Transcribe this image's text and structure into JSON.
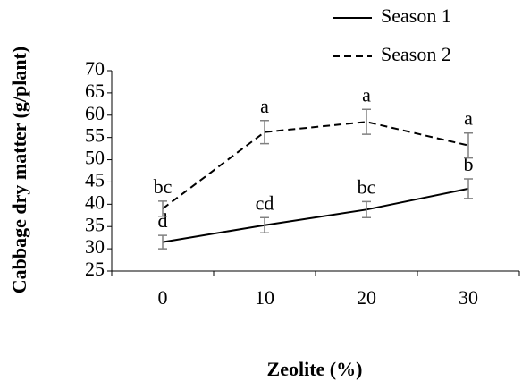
{
  "chart_data": {
    "type": "line",
    "categories": [
      "0",
      "10",
      "20",
      "30"
    ],
    "series": [
      {
        "name": "Season 1",
        "color": "#000000",
        "dash": false,
        "values": [
          31.5,
          35.3,
          38.8,
          43.5
        ],
        "errors": [
          1.5,
          1.7,
          1.8,
          2.2
        ],
        "letters": [
          "d",
          "cd",
          "bc",
          "b"
        ]
      },
      {
        "name": "Season 2",
        "color": "#000000",
        "dash": true,
        "values": [
          39.0,
          56.2,
          58.5,
          53.2
        ],
        "errors": [
          1.7,
          2.6,
          2.8,
          2.8
        ],
        "letters": [
          "bc",
          "a",
          "a",
          "a"
        ]
      }
    ],
    "ylim": [
      25,
      70
    ],
    "yticks": [
      25,
      30,
      35,
      40,
      45,
      50,
      55,
      60,
      65,
      70
    ],
    "y_label": "Cabbage dry matter (g/plant)",
    "x_label": "Zeolite (%)",
    "error_bar_color": "#808080",
    "legend": "top-right"
  }
}
